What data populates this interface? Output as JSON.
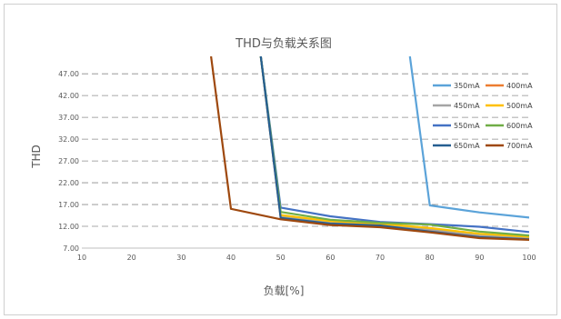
{
  "chart_data": {
    "type": "line",
    "title": "THD与负载关系图",
    "xlabel": "负载[%]",
    "ylabel": "THD",
    "xlim": [
      10,
      100
    ],
    "ylim": [
      7.0,
      51.0
    ],
    "x_ticks": [
      "10",
      "20",
      "30",
      "40",
      "50",
      "60",
      "70",
      "80",
      "90",
      "100"
    ],
    "y_ticks": [
      "7.00",
      "12.00",
      "17.00",
      "22.00",
      "27.00",
      "32.00",
      "37.00",
      "42.00",
      "47.00"
    ],
    "y_tick_values": [
      7,
      12,
      17,
      22,
      27,
      32,
      37,
      42,
      47
    ],
    "grid": "horizontal-dashed",
    "legend_position": "top-right",
    "series": [
      {
        "name": "350mA",
        "color": "#5ba3d9",
        "points": [
          [
            76,
            51
          ],
          [
            80,
            16.8
          ],
          [
            90,
            15.2
          ],
          [
            100,
            14.0
          ]
        ]
      },
      {
        "name": "400mA",
        "color": "#ed7d31",
        "points": [
          [
            46,
            51
          ],
          [
            50,
            14.0
          ],
          [
            60,
            12.8
          ],
          [
            70,
            12.2
          ],
          [
            80,
            11.0
          ],
          [
            90,
            9.8
          ],
          [
            100,
            9.2
          ]
        ]
      },
      {
        "name": "450mA",
        "color": "#a5a5a5",
        "points": [
          [
            46,
            51
          ],
          [
            50,
            14.3
          ],
          [
            60,
            13.0
          ],
          [
            70,
            12.4
          ],
          [
            80,
            11.3
          ],
          [
            90,
            10.0
          ],
          [
            100,
            9.4
          ]
        ]
      },
      {
        "name": "500mA",
        "color": "#ffc000",
        "points": [
          [
            46,
            51
          ],
          [
            50,
            14.6
          ],
          [
            60,
            13.2
          ],
          [
            70,
            12.6
          ],
          [
            80,
            11.6
          ],
          [
            90,
            10.3
          ],
          [
            100,
            9.6
          ]
        ]
      },
      {
        "name": "550mA",
        "color": "#4472c4",
        "points": [
          [
            46,
            51
          ],
          [
            50,
            16.3
          ],
          [
            60,
            14.3
          ],
          [
            70,
            13.0
          ],
          [
            80,
            12.5
          ],
          [
            90,
            11.9
          ],
          [
            100,
            10.7
          ]
        ]
      },
      {
        "name": "600mA",
        "color": "#70ad47",
        "points": [
          [
            46,
            51
          ],
          [
            50,
            15.3
          ],
          [
            60,
            13.5
          ],
          [
            70,
            12.8
          ],
          [
            80,
            12.4
          ],
          [
            90,
            10.8
          ],
          [
            100,
            9.9
          ]
        ]
      },
      {
        "name": "650mA",
        "color": "#255e91",
        "points": [
          [
            46,
            51
          ],
          [
            50,
            13.9
          ],
          [
            60,
            12.6
          ],
          [
            70,
            12.2
          ],
          [
            80,
            10.8
          ],
          [
            90,
            9.5
          ],
          [
            100,
            9.0
          ]
        ]
      },
      {
        "name": "700mA",
        "color": "#9e480e",
        "points": [
          [
            36,
            51
          ],
          [
            40,
            16.0
          ],
          [
            50,
            13.6
          ],
          [
            60,
            12.3
          ],
          [
            70,
            11.8
          ],
          [
            80,
            10.6
          ],
          [
            90,
            9.3
          ],
          [
            100,
            8.9
          ]
        ]
      }
    ]
  }
}
